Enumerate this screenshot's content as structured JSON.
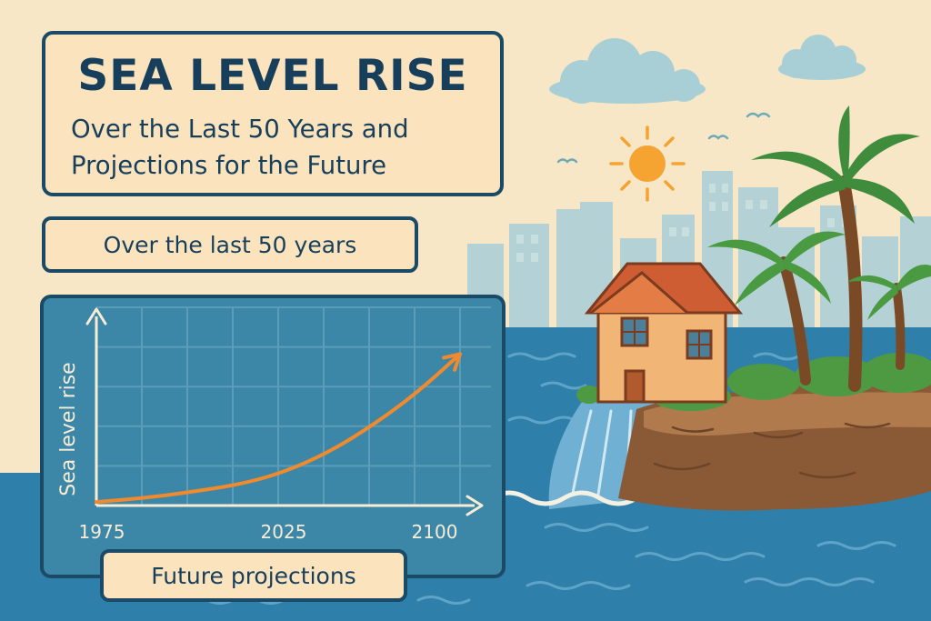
{
  "title": {
    "main": "SEA LEVEL RISE",
    "subtitle_line1": "Over the Last 50 Years and",
    "subtitle_line2": "Projections for the Future"
  },
  "labels": {
    "last_50": "Over the last 50 years",
    "future": "Future projections"
  },
  "chart_data": {
    "type": "line",
    "title": "",
    "xlabel": "",
    "ylabel": "Sea level rise",
    "x_ticks": [
      "1975",
      "2025",
      "2100"
    ],
    "xlim": [
      1975,
      2100
    ],
    "ylim": [
      0,
      1
    ],
    "grid": true,
    "series": [
      {
        "x": [
          1975,
          1990,
          2005,
          2025,
          2040,
          2055,
          2070,
          2085,
          2100
        ],
        "y": [
          0.02,
          0.04,
          0.07,
          0.12,
          0.19,
          0.3,
          0.45,
          0.63,
          0.85
        ]
      }
    ],
    "line_color": "#f08a2c"
  },
  "colors": {
    "sky": "#f8e7c6",
    "ocean": "#2f7fab",
    "chart_bg": "#3c87a8",
    "frame": "#1b4a66",
    "sun": "#f5a331",
    "palm": "#3f8d3c"
  }
}
